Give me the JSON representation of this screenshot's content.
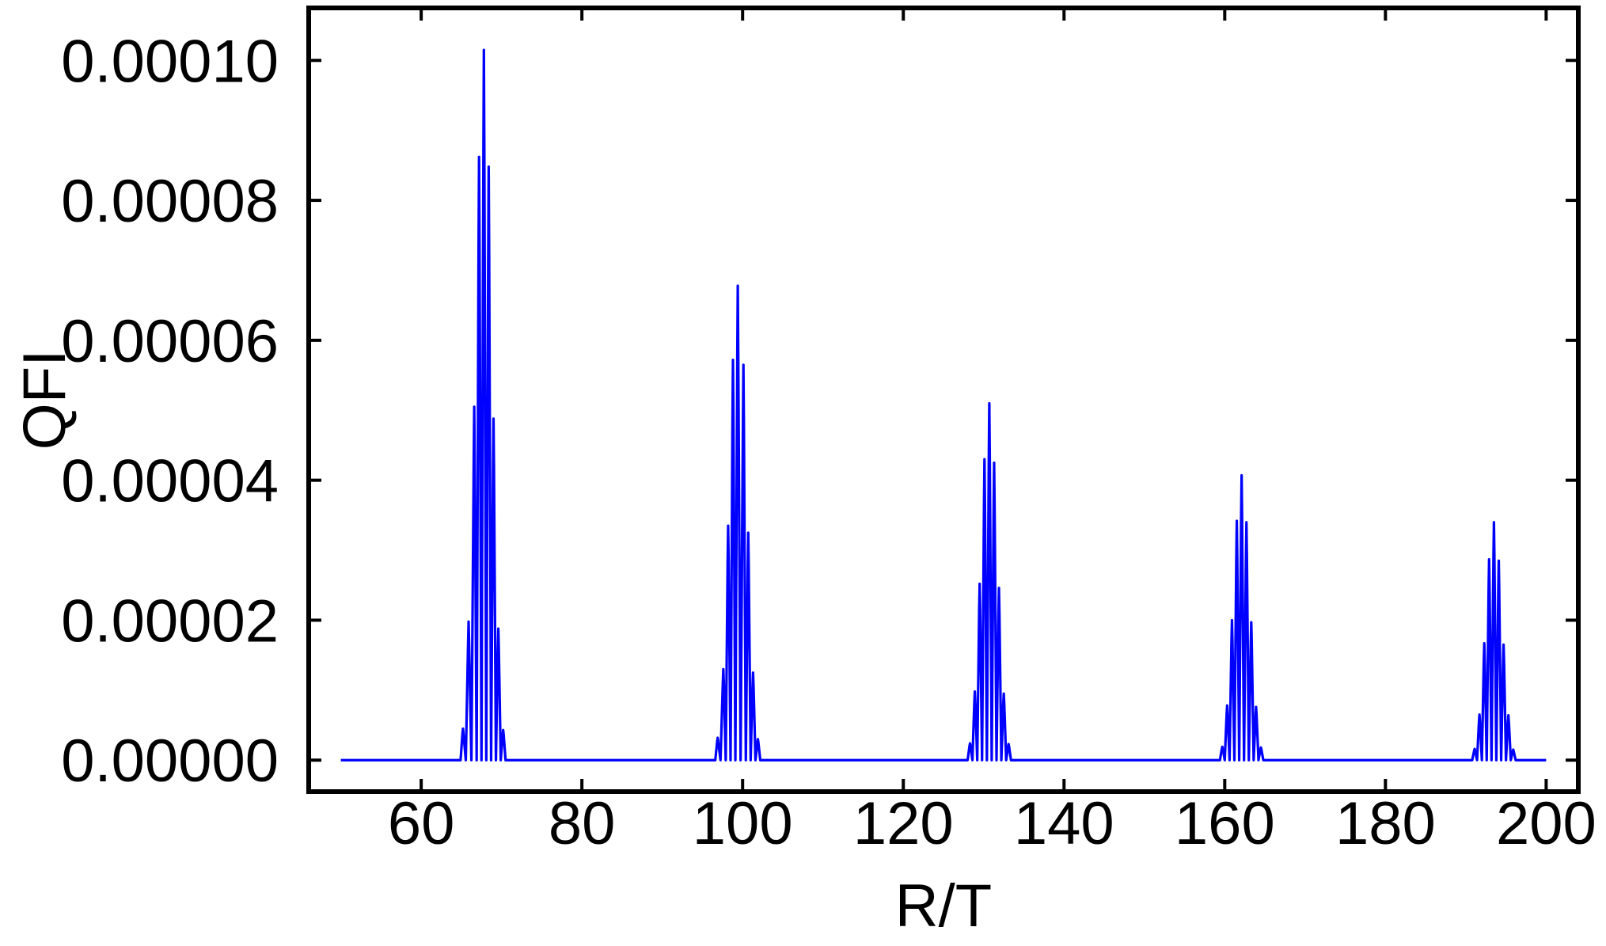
{
  "chart_data": {
    "type": "line",
    "title": "",
    "xlabel": "R/T",
    "ylabel": "QFI",
    "xlim": [
      46,
      204
    ],
    "ylim": [
      -4.5e-06,
      0.0001075
    ],
    "x_ticks": [
      60,
      80,
      100,
      120,
      140,
      160,
      180,
      200
    ],
    "x_tick_labels": [
      "60",
      "80",
      "100",
      "120",
      "140",
      "160",
      "180",
      "200"
    ],
    "y_ticks": [
      0,
      2e-05,
      4e-05,
      6e-05,
      8e-05,
      0.0001
    ],
    "y_tick_labels": [
      "0.00000",
      "0.00002",
      "0.00004",
      "0.00006",
      "0.00008",
      "0.00010"
    ],
    "x_range": [
      50,
      200
    ],
    "grid": false,
    "frame": true,
    "series": [
      {
        "color": "#0000ff",
        "baseline": 0,
        "spikes": [
          [
            65.2,
            4.5e-06
          ],
          [
            65.9,
            1.98e-05
          ],
          [
            66.6,
            5.05e-05
          ],
          [
            67.2,
            8.62e-05
          ],
          [
            67.8,
            0.0001015
          ],
          [
            68.4,
            8.48e-05
          ],
          [
            69.0,
            4.88e-05
          ],
          [
            69.6,
            1.88e-05
          ],
          [
            70.2,
            4.3e-06
          ],
          [
            96.9,
            3.2e-06
          ],
          [
            97.6,
            1.3e-05
          ],
          [
            98.2,
            3.35e-05
          ],
          [
            98.8,
            5.72e-05
          ],
          [
            99.4,
            6.78e-05
          ],
          [
            100.1,
            5.65e-05
          ],
          [
            100.7,
            3.25e-05
          ],
          [
            101.3,
            1.25e-05
          ],
          [
            101.9,
            3e-06
          ],
          [
            128.3,
            2.4e-06
          ],
          [
            128.9,
            9.8e-06
          ],
          [
            129.5,
            2.52e-05
          ],
          [
            130.1,
            4.3e-05
          ],
          [
            130.7,
            5.1e-05
          ],
          [
            131.3,
            4.25e-05
          ],
          [
            131.9,
            2.46e-05
          ],
          [
            132.5,
            9.5e-06
          ],
          [
            133.1,
            2.3e-06
          ],
          [
            159.7,
            1.9e-06
          ],
          [
            160.3,
            7.8e-06
          ],
          [
            160.9,
            2e-05
          ],
          [
            161.5,
            3.42e-05
          ],
          [
            162.1,
            4.07e-05
          ],
          [
            162.7,
            3.4e-05
          ],
          [
            163.3,
            1.97e-05
          ],
          [
            163.9,
            7.6e-06
          ],
          [
            164.5,
            1.8e-06
          ],
          [
            191.1,
            1.6e-06
          ],
          [
            191.7,
            6.5e-06
          ],
          [
            192.3,
            1.67e-05
          ],
          [
            192.9,
            2.87e-05
          ],
          [
            193.5,
            3.4e-05
          ],
          [
            194.1,
            2.85e-05
          ],
          [
            194.7,
            1.65e-05
          ],
          [
            195.3,
            6.4e-06
          ],
          [
            195.9,
            1.5e-06
          ]
        ]
      }
    ]
  }
}
